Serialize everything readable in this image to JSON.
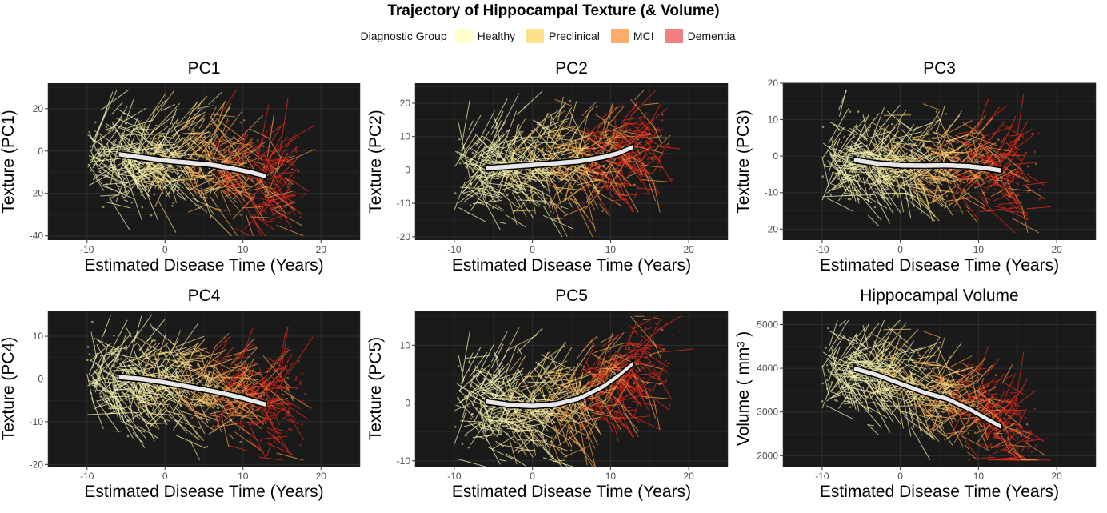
{
  "figure": {
    "title": "Trajectory of Hippocampal Texture (& Volume)",
    "legend": {
      "title": "Diagnostic Group",
      "items": [
        {
          "label": "Healthy",
          "color": "#ffffcc"
        },
        {
          "label": "Preclinical",
          "color": "#ffe08a"
        },
        {
          "label": "MCI",
          "color": "#fdae6b"
        },
        {
          "label": "Dementia",
          "color": "#f08080"
        }
      ]
    },
    "colors": {
      "panel_bg": "#1a1a1a",
      "grid": "#2e2e2e",
      "trend_fill": "#e8e8e8",
      "trend_stroke": "#000000",
      "healthy": "#f7f3b0",
      "preclinical": "#f5d27a",
      "mci": "#f29a45",
      "dementia": "#e8281a"
    }
  },
  "chart_data": [
    {
      "type": "line",
      "title": "PC1",
      "xlabel": "Estimated Disease Time (Years)",
      "ylabel": "Texture (PC1)",
      "xlim": [
        -15,
        25
      ],
      "ylim": [
        -42,
        32
      ],
      "xticks": [
        -10,
        0,
        10,
        20
      ],
      "yticks": [
        -40,
        -20,
        0,
        20
      ],
      "data_range": {
        "x": [
          -10,
          16
        ],
        "y": [
          -40,
          29
        ]
      },
      "trend": {
        "x": [
          -6,
          -3,
          0,
          3,
          6,
          9,
          11,
          13
        ],
        "y": [
          -1.5,
          -3,
          -4.5,
          -5.5,
          -6.5,
          -8.5,
          -10,
          -12
        ]
      }
    },
    {
      "type": "line",
      "title": "PC2",
      "xlabel": "Estimated Disease Time (Years)",
      "ylabel": "Texture (PC2)",
      "xlim": [
        -15,
        25
      ],
      "ylim": [
        -21,
        26
      ],
      "xticks": [
        -10,
        0,
        10,
        20
      ],
      "yticks": [
        -20,
        -10,
        0,
        10,
        20
      ],
      "data_range": {
        "x": [
          -10,
          16
        ],
        "y": [
          -20,
          24
        ]
      },
      "trend": {
        "x": [
          -6,
          -3,
          0,
          3,
          6,
          9,
          11,
          13
        ],
        "y": [
          0.5,
          1,
          1.5,
          2,
          2.6,
          3.8,
          5,
          7
        ]
      }
    },
    {
      "type": "line",
      "title": "PC3",
      "xlabel": "Estimated Disease Time (Years)",
      "ylabel": "Texture (PC3)",
      "xlim": [
        -15,
        25
      ],
      "ylim": [
        -23,
        20
      ],
      "xticks": [
        -10,
        0,
        10,
        20
      ],
      "yticks": [
        -20,
        -10,
        0,
        10,
        20
      ],
      "data_range": {
        "x": [
          -10,
          16
        ],
        "y": [
          -21,
          18
        ]
      },
      "trend": {
        "x": [
          -6,
          -3,
          0,
          3,
          6,
          9,
          11,
          13
        ],
        "y": [
          -1,
          -2,
          -2.5,
          -2.6,
          -2.5,
          -2.8,
          -3.3,
          -4
        ]
      }
    },
    {
      "type": "line",
      "title": "PC4",
      "xlabel": "Estimated Disease Time (Years)",
      "ylabel": "Texture (PC4)",
      "xlim": [
        -15,
        25
      ],
      "ylim": [
        -20.5,
        16
      ],
      "xticks": [
        -10,
        0,
        10,
        20
      ],
      "yticks": [
        -20,
        -10,
        0,
        10
      ],
      "data_range": {
        "x": [
          -10,
          16
        ],
        "y": [
          -19,
          15
        ]
      },
      "trend": {
        "x": [
          -6,
          -3,
          0,
          3,
          6,
          9,
          11,
          13
        ],
        "y": [
          0.5,
          0,
          -0.8,
          -1.8,
          -2.8,
          -4,
          -5,
          -6
        ]
      }
    },
    {
      "type": "line",
      "title": "PC5",
      "xlabel": "Estimated Disease Time (Years)",
      "ylabel": "Texture (PC5)",
      "xlim": [
        -15,
        25
      ],
      "ylim": [
        -11,
        16
      ],
      "xticks": [
        -10,
        0,
        10,
        20
      ],
      "yticks": [
        -10,
        0,
        10
      ],
      "data_range": {
        "x": [
          -10,
          16
        ],
        "y": [
          -11,
          15
        ]
      },
      "trend": {
        "x": [
          -6,
          -3,
          0,
          3,
          6,
          9,
          11,
          13
        ],
        "y": [
          0.3,
          -0.3,
          -0.5,
          -0.2,
          0.8,
          2.8,
          4.7,
          7
        ]
      }
    },
    {
      "type": "line",
      "title": "Hippocampal Volume",
      "xlabel": "Estimated Disease Time (Years)",
      "ylabel": "Volume ( mm³ )",
      "xlim": [
        -15,
        25
      ],
      "ylim": [
        1750,
        5320
      ],
      "xticks": [
        -10,
        0,
        10,
        20
      ],
      "yticks": [
        2000,
        3000,
        4000,
        5000
      ],
      "data_range": {
        "x": [
          -10,
          16
        ],
        "y": [
          1900,
          5100
        ]
      },
      "trend": {
        "x": [
          -6,
          -3,
          0,
          3,
          6,
          9,
          11,
          13
        ],
        "y": [
          4000,
          3850,
          3650,
          3450,
          3300,
          3050,
          2850,
          2650
        ]
      }
    }
  ]
}
